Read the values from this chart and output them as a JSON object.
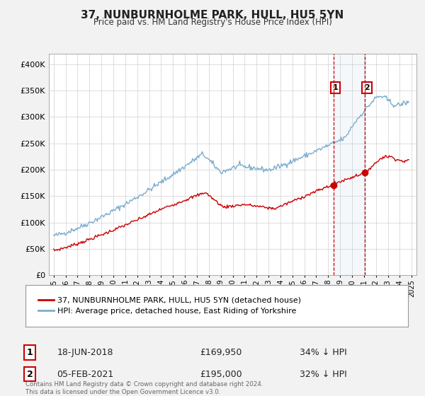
{
  "title": "37, NUNBURNHOLME PARK, HULL, HU5 5YN",
  "subtitle": "Price paid vs. HM Land Registry's House Price Index (HPI)",
  "red_label": "37, NUNBURNHOLME PARK, HULL, HU5 5YN (detached house)",
  "blue_label": "HPI: Average price, detached house, East Riding of Yorkshire",
  "annotation1_date": "18-JUN-2018",
  "annotation1_price": "£169,950",
  "annotation1_hpi": "34% ↓ HPI",
  "annotation2_date": "05-FEB-2021",
  "annotation2_price": "£195,000",
  "annotation2_hpi": "32% ↓ HPI",
  "footnote": "Contains HM Land Registry data © Crown copyright and database right 2024.\nThis data is licensed under the Open Government Licence v3.0.",
  "red_color": "#cc0000",
  "blue_color": "#7aadcf",
  "vline1_x": 2018.46,
  "vline2_x": 2021.09,
  "marker1_red_y": 169950,
  "marker2_red_y": 195000,
  "ylim": [
    0,
    420000
  ],
  "xlim_left": 1994.6,
  "xlim_right": 2025.4,
  "background_color": "#f2f2f2",
  "plot_bg_color": "#ffffff"
}
